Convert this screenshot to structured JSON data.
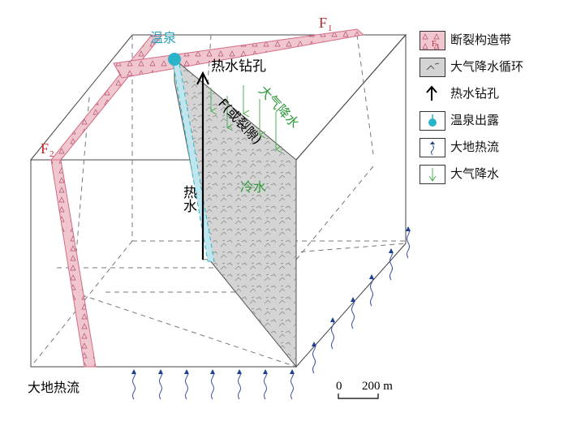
{
  "labels": {
    "hot_spring": "温泉",
    "fault_f1_letter": "F",
    "fault_f1_sub": "1",
    "fault_f2_letter": "F",
    "fault_f2_sub": "2",
    "drill_hole": "热水钻孔",
    "rain_on_plane": "大气降水",
    "plane_fault": "F(或裂隙)",
    "cold_water": "冷水",
    "hot_water": "热水",
    "earth_heat_flow": "大地热流",
    "scale_zero": "0",
    "scale_value": "200 m"
  },
  "legend": {
    "items": [
      {
        "label": "断裂构造带",
        "sub": "F",
        "sub_index": "1",
        "icon": "fault-zone-icon"
      },
      {
        "label": "大气降水循环",
        "icon": "circulation-icon"
      },
      {
        "label": "热水钻孔",
        "icon": "up-arrow-icon"
      },
      {
        "label": "温泉出露",
        "icon": "spring-icon"
      },
      {
        "label": "大地热流",
        "icon": "wavy-arrow-icon"
      },
      {
        "label": "大气降水",
        "icon": "down-arrow-icon"
      }
    ]
  },
  "colors": {
    "fault_fill": "#f1c7cf",
    "fault_stroke": "#d46a86",
    "plane_fill": "#d9d9d9",
    "spring": "#2ab3c9",
    "rain": "#4caf50",
    "heat_arrow": "#1f3f8f",
    "label_red": "#c0282e",
    "label_cyan": "#2a9fb8",
    "label_green": "#2e9b3a"
  }
}
